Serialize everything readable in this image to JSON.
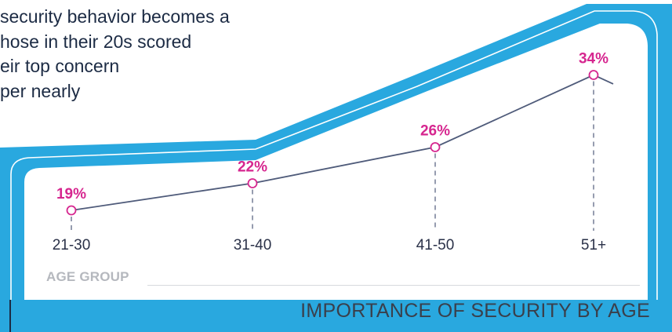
{
  "intro": {
    "lines": [
      "security behavior becomes a",
      "hose in their 20s scored",
      "eir top concern",
      "per nearly"
    ]
  },
  "colors": {
    "background_band": "#29a8df",
    "panel": "#ffffff",
    "line": "#4f5b7a",
    "marker": "#d6268f",
    "label_accent": "#d6268f"
  },
  "chart_data": {
    "type": "line",
    "title": "IMPORTANCE OF SECURITY BY AGE",
    "xlabel": "AGE GROUP",
    "ylabel": "",
    "categories": [
      "21-30",
      "31-40",
      "41-50",
      "51+"
    ],
    "values": [
      19,
      22,
      26,
      34
    ],
    "value_labels": [
      "19%",
      "22%",
      "26%",
      "34%"
    ],
    "unit": "%",
    "ylim": [
      15,
      36
    ],
    "grid": false,
    "legend": "none"
  }
}
